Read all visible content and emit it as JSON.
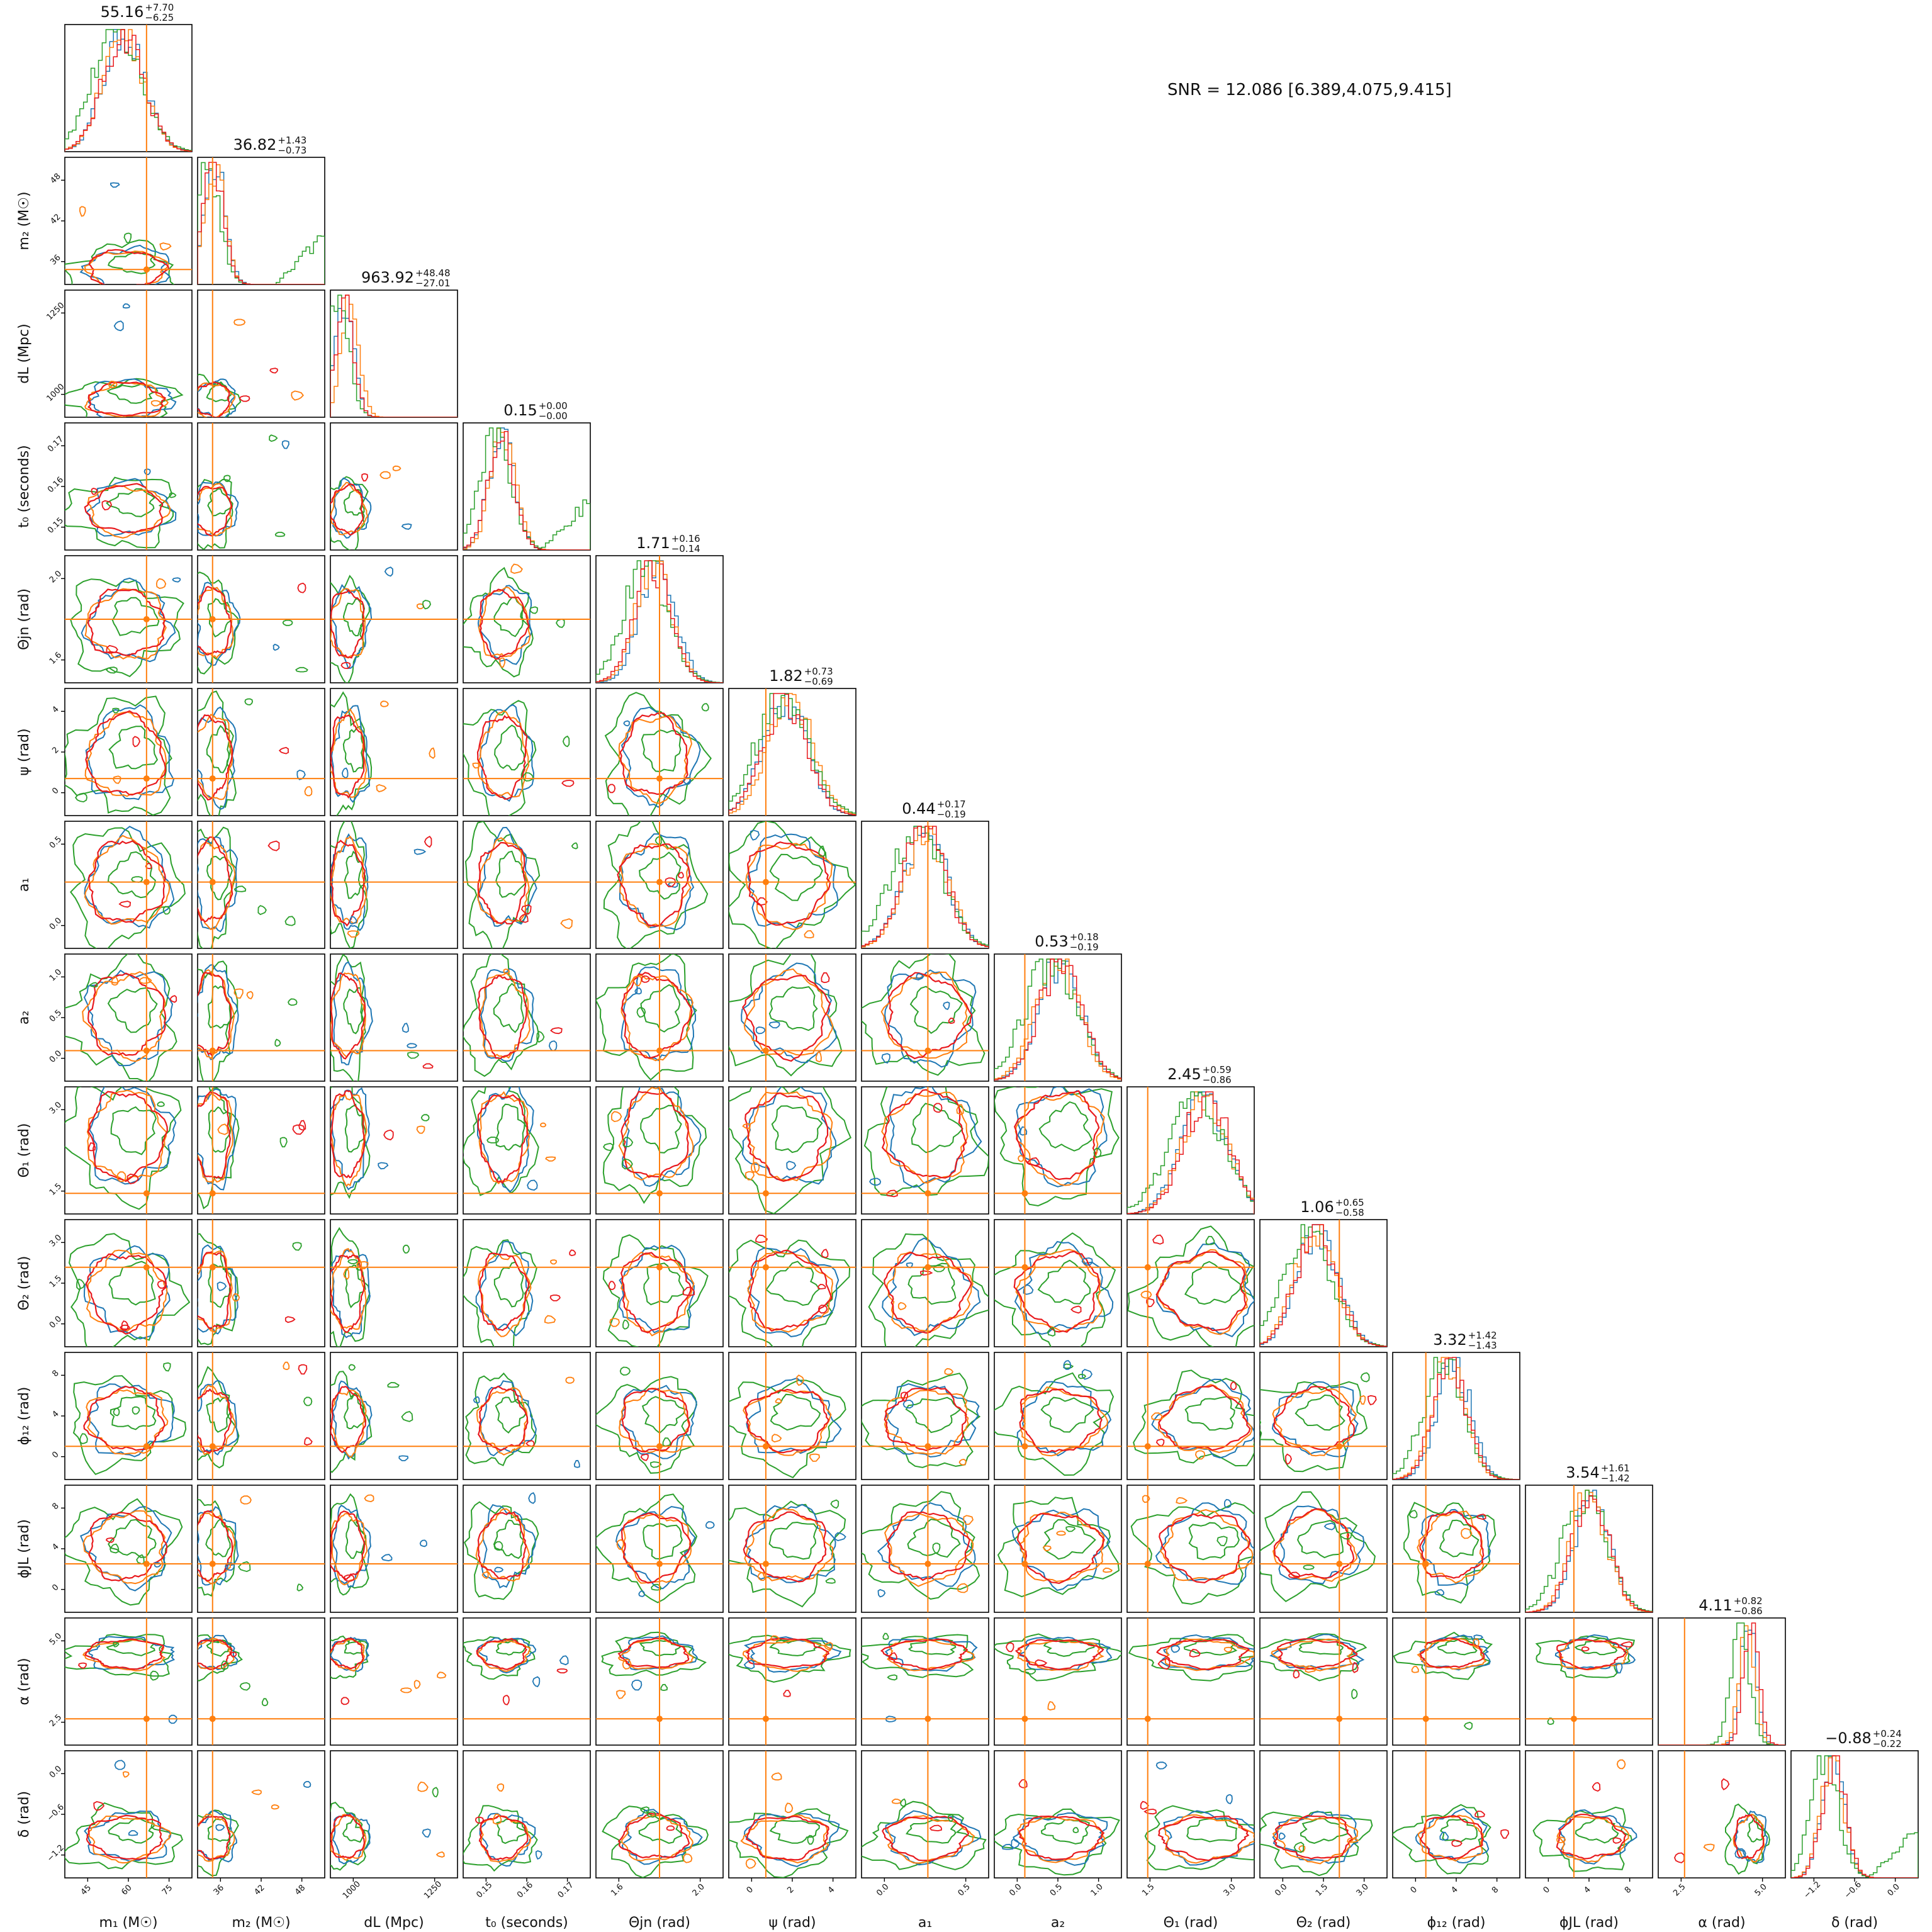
{
  "snr_text": "SNR = 12.086 [6.389,4.075,9.415]",
  "colors": {
    "series": [
      "#1f77b4",
      "#ff7f0e",
      "#2ca02c",
      "#e8191d"
    ],
    "truth": "#ff7f0e",
    "frame": "#000000"
  },
  "chart_data": {
    "type": "corner",
    "parameters": [
      {
        "label": "m₁ (M☉)",
        "title_value": "55.16",
        "title_plus": "+7.70",
        "title_minus": "−6.25",
        "ticks": [
          "45",
          "60",
          "75"
        ],
        "range": [
          38,
          80
        ],
        "truth": 65
      },
      {
        "label": "m₂ (M☉)",
        "title_value": "36.82",
        "title_plus": "+1.43",
        "title_minus": "−0.73",
        "ticks": [
          "36",
          "42",
          "48"
        ],
        "range": [
          35,
          52
        ],
        "truth": 37
      },
      {
        "label": "dL (Mpc)",
        "title_value": "963.92",
        "title_plus": "+48.48",
        "title_minus": "−27.01",
        "ticks": [
          "1000",
          "1250"
        ],
        "range": [
          900,
          1400
        ],
        "truth": null
      },
      {
        "label": "t₀ (seconds)",
        "title_value": "0.15",
        "title_plus": "+0.00",
        "title_minus": "−0.00",
        "ticks": [
          "0.15",
          "0.16",
          "0.17"
        ],
        "range": [
          0.14,
          0.175
        ],
        "truth": null
      },
      {
        "label": "Θjn (rad)",
        "title_value": "1.71",
        "title_plus": "+0.16",
        "title_minus": "−0.14",
        "ticks": [
          "1.6",
          "2.0"
        ],
        "range": [
          1.3,
          2.3
        ],
        "truth": 1.8
      },
      {
        "label": "ψ (rad)",
        "title_value": "1.82",
        "title_plus": "+0.73",
        "title_minus": "−0.69",
        "ticks": [
          "0",
          "2",
          "4"
        ],
        "range": [
          -0.6,
          4.2
        ],
        "truth": 0.8
      },
      {
        "label": "a₁",
        "title_value": "0.44",
        "title_plus": "+0.17",
        "title_minus": "−0.19",
        "ticks": [
          "0.0",
          "0.5"
        ],
        "range": [
          -0.2,
          0.95
        ],
        "truth": 0.4
      },
      {
        "label": "a₂",
        "title_value": "0.53",
        "title_plus": "+0.18",
        "title_minus": "−0.19",
        "ticks": [
          "0.0",
          "0.5",
          "1.0"
        ],
        "range": [
          -0.15,
          1.1
        ],
        "truth": 0.15
      },
      {
        "label": "Θ₁ (rad)",
        "title_value": "2.45",
        "title_plus": "+0.59",
        "title_minus": "−0.86",
        "ticks": [
          "1.5",
          "3.0"
        ],
        "range": [
          0.3,
          4.0
        ],
        "truth": 0.9
      },
      {
        "label": "Θ₂ (rad)",
        "title_value": "1.06",
        "title_plus": "+0.65",
        "title_minus": "−0.58",
        "ticks": [
          "0.0",
          "1.5",
          "3.0"
        ],
        "range": [
          -0.6,
          3.4
        ],
        "truth": 1.9
      },
      {
        "label": "ϕ₁₂ (rad)",
        "title_value": "3.32",
        "title_plus": "+1.42",
        "title_minus": "−1.43",
        "ticks": [
          "0",
          "4",
          "8"
        ],
        "range": [
          -1.5,
          10
        ],
        "truth": 1.5
      },
      {
        "label": "ϕJL (rad)",
        "title_value": "3.54",
        "title_plus": "+1.61",
        "title_minus": "−1.42",
        "ticks": [
          "0",
          "4",
          "8"
        ],
        "range": [
          -1.5,
          9
        ],
        "truth": 2.5
      },
      {
        "label": "α (rad)",
        "title_value": "4.11",
        "title_plus": "+0.82",
        "title_minus": "−0.86",
        "ticks": [
          "2.5",
          "5.0"
        ],
        "range": [
          0.5,
          6.3
        ],
        "truth": 1.7
      },
      {
        "label": "δ (rad)",
        "title_value": "−0.88",
        "title_plus": "+0.24",
        "title_minus": "−0.22",
        "ticks": [
          "−1.2",
          "−0.6",
          "0.0"
        ],
        "range": [
          -1.5,
          0.3
        ],
        "truth": null
      }
    ],
    "series": [
      {
        "color": "#1f77b4"
      },
      {
        "color": "#ff7f0e"
      },
      {
        "color": "#2ca02c"
      },
      {
        "color": "#e8191d"
      }
    ]
  }
}
